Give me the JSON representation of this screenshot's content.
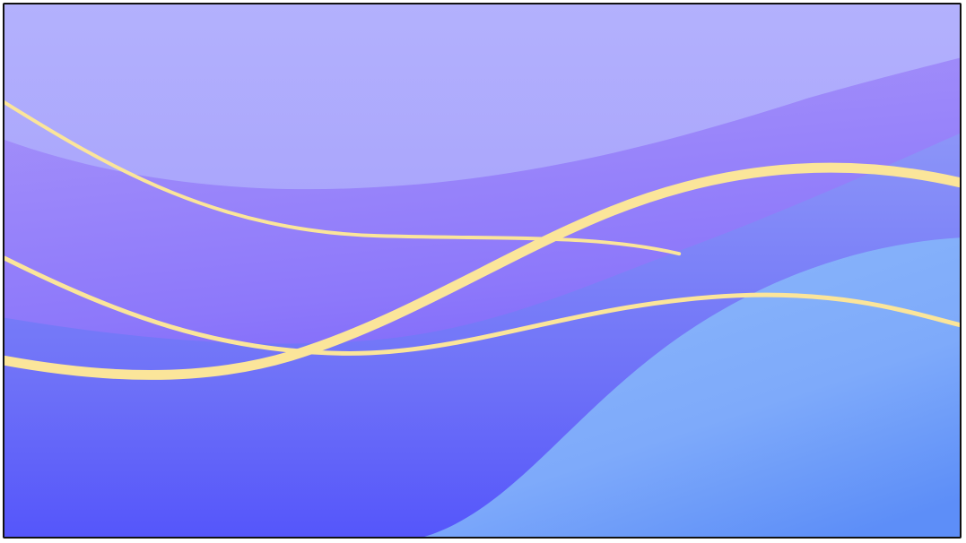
{
  "wallpaper": {
    "colors": {
      "sky_top": "#b3b1fd",
      "sky_bottom": "#9e96fb",
      "band_violet_top": "#a493f9",
      "band_violet_bottom": "#6c55f9",
      "band_periwinkle_top": "#8a93f8",
      "band_periwinkle_bottom": "#5a5cf9",
      "front_blue_top": "#8ab7fb",
      "front_blue_bottom": "#5f8ff8",
      "ribbon": "#fbe59a",
      "frame_border": "#111111"
    }
  }
}
